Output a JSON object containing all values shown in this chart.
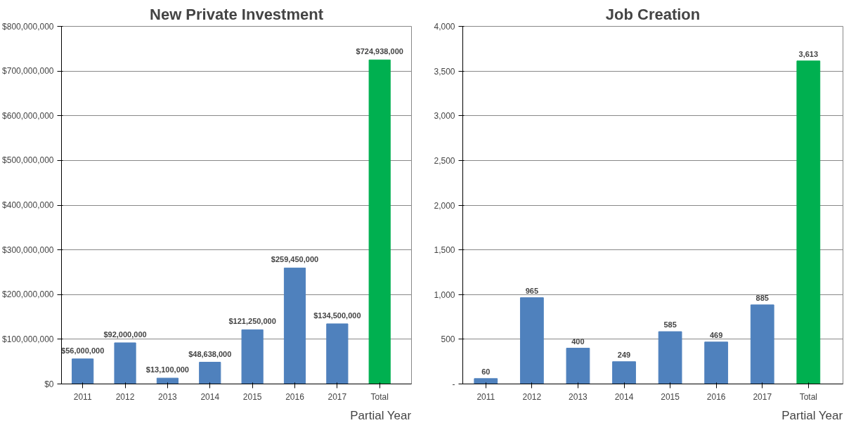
{
  "chart_data": [
    {
      "type": "bar",
      "title": "New Private Investment",
      "categories": [
        "2011",
        "2012",
        "2013",
        "2014",
        "2015",
        "2016",
        "2017",
        "Total"
      ],
      "values": [
        56000000,
        92000000,
        13100000,
        48638000,
        121250000,
        259450000,
        134500000,
        724938000
      ],
      "colors": [
        "#4f81bd",
        "#4f81bd",
        "#4f81bd",
        "#4f81bd",
        "#4f81bd",
        "#4f81bd",
        "#4f81bd",
        "#00b050"
      ],
      "value_labels": [
        "$56,000,000",
        "$92,000,000",
        "$13,100,000",
        "$48,638,000",
        "$121,250,000",
        "$259,450,000",
        "$134,500,000",
        "$724,938,000"
      ],
      "ylim": [
        0,
        800000000
      ],
      "yticks": [
        {
          "value": 0,
          "label": "$0"
        },
        {
          "value": 100000000,
          "label": "$100,000,000"
        },
        {
          "value": 200000000,
          "label": "$200,000,000"
        },
        {
          "value": 300000000,
          "label": "$300,000,000"
        },
        {
          "value": 400000000,
          "label": "$400,000,000"
        },
        {
          "value": 500000000,
          "label": "$500,000,000"
        },
        {
          "value": 600000000,
          "label": "$600,000,000"
        },
        {
          "value": 700000000,
          "label": "$700,000,000"
        },
        {
          "value": 800000000,
          "label": "$800,000,000"
        }
      ],
      "grid": "y",
      "annotations": [
        "Partial Year"
      ]
    },
    {
      "type": "bar",
      "title": "Job Creation",
      "categories": [
        "2011",
        "2012",
        "2013",
        "2014",
        "2015",
        "2016",
        "2017",
        "Total"
      ],
      "values": [
        60,
        965,
        400,
        249,
        585,
        469,
        885,
        3613
      ],
      "colors": [
        "#4f81bd",
        "#4f81bd",
        "#4f81bd",
        "#4f81bd",
        "#4f81bd",
        "#4f81bd",
        "#4f81bd",
        "#00b050"
      ],
      "value_labels": [
        "60",
        "965",
        "400",
        "249",
        "585",
        "469",
        "885",
        "3,613"
      ],
      "ylim": [
        0,
        4000
      ],
      "yticks": [
        {
          "value": 0,
          "label": "-"
        },
        {
          "value": 500,
          "label": "500"
        },
        {
          "value": 1000,
          "label": "1,000"
        },
        {
          "value": 1500,
          "label": "1,500"
        },
        {
          "value": 2000,
          "label": "2,000"
        },
        {
          "value": 2500,
          "label": "2,500"
        },
        {
          "value": 3000,
          "label": "3,000"
        },
        {
          "value": 3500,
          "label": "3,500"
        },
        {
          "value": 4000,
          "label": "4,000"
        }
      ],
      "grid": "y",
      "annotations": [
        "Partial Year"
      ]
    }
  ]
}
